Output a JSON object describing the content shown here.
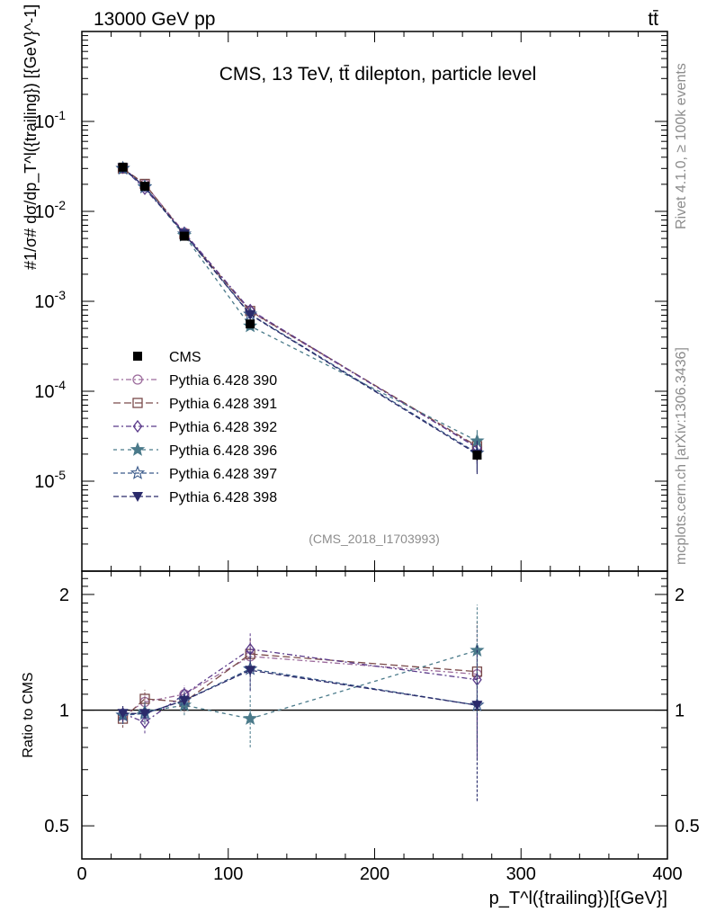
{
  "header": {
    "left": "13000 GeV pp",
    "right": "tt̄"
  },
  "side_labels": {
    "rivet": "Rivet 4.1.0, ≥ 100k events",
    "mcplots": "mcplots.cern.ch [arXiv:1306.3436]"
  },
  "chart_data": [
    {
      "type": "line",
      "title": "CMS, 13 TeV, tt̄ dilepton, particle level",
      "watermark": "(CMS_2018_I1703993)",
      "ylabel": "#1/σ# dσ/dp_T^l({trailing}) [{GeV}^-1]",
      "yscale": "log",
      "xlim": [
        0,
        400
      ],
      "ylim": [
        1e-06,
        1
      ],
      "ytick_labels": [
        "10^-1",
        "10^-2",
        "10^-3",
        "10^-4",
        "10^-5"
      ],
      "x": [
        28,
        43,
        70,
        115,
        270
      ],
      "legend_position": "middle-left",
      "series": [
        {
          "name": "CMS",
          "color": "#000000",
          "marker": "square-filled",
          "values": [
            0.031,
            0.019,
            0.0053,
            0.00056,
            1.95e-05
          ],
          "errors": [
            0.0015,
            0.001,
            0.0003,
            4e-05,
            2.5e-06
          ]
        },
        {
          "name": "Pythia 6.428 390",
          "color": "#9c6b9c",
          "marker": "circle-open",
          "values": [
            0.03,
            0.02,
            0.0058,
            0.00077,
            2.4e-05
          ],
          "errors": [
            0.001,
            0.001,
            0.0003,
            5e-05,
            8e-06
          ]
        },
        {
          "name": "Pythia 6.428 391",
          "color": "#7a4a4a",
          "marker": "square-open",
          "values": [
            0.03,
            0.0202,
            0.0056,
            0.00078,
            2.45e-05
          ],
          "errors": [
            0.001,
            0.001,
            0.0003,
            5e-05,
            8e-06
          ]
        },
        {
          "name": "Pythia 6.428 392",
          "color": "#5a3a8a",
          "marker": "diamond-open",
          "values": [
            0.0305,
            0.0178,
            0.0058,
            0.0008,
            2.35e-05
          ],
          "errors": [
            0.001,
            0.001,
            0.0003,
            5e-05,
            8e-06
          ]
        },
        {
          "name": "Pythia 6.428 396",
          "color": "#4a7a8a",
          "marker": "star-filled",
          "values": [
            0.03,
            0.0188,
            0.0054,
            0.00053,
            2.8e-05
          ],
          "errors": [
            0.001,
            0.001,
            0.0003,
            5e-05,
            9e-06
          ]
        },
        {
          "name": "Pythia 6.428 397",
          "color": "#3a5a8a",
          "marker": "star-open",
          "values": [
            0.03,
            0.0186,
            0.0056,
            0.00072,
            2.05e-05
          ],
          "errors": [
            0.001,
            0.001,
            0.0003,
            5e-05,
            8e-06
          ]
        },
        {
          "name": "Pythia 6.428 398",
          "color": "#2a2a6a",
          "marker": "triangle-down-filled",
          "values": [
            0.0305,
            0.0187,
            0.0056,
            0.00071,
            2e-05
          ],
          "errors": [
            0.001,
            0.001,
            0.0003,
            5e-05,
            8e-06
          ]
        }
      ]
    },
    {
      "type": "line",
      "xlabel": "p_T^l({trailing})[{GeV}]",
      "ylabel": "Ratio to CMS",
      "yscale": "log",
      "xlim": [
        0,
        400
      ],
      "ylim": [
        0.41,
        2.3
      ],
      "yticks": [
        0.5,
        1,
        2
      ],
      "ytick_labels": [
        "0.5",
        "1",
        "2"
      ],
      "xticks": [
        0,
        100,
        200,
        300,
        400
      ],
      "xtick_labels": [
        "0",
        "100",
        "200",
        "300",
        "400"
      ],
      "x": [
        28,
        43,
        70,
        115,
        270
      ],
      "reference_line": 1,
      "series": [
        {
          "name": "Pythia 6.428 390",
          "values": [
            0.97,
            1.05,
            1.1,
            1.38,
            1.24
          ],
          "errors": [
            0.05,
            0.06,
            0.06,
            0.15,
            0.45
          ]
        },
        {
          "name": "Pythia 6.428 391",
          "values": [
            0.95,
            1.07,
            1.05,
            1.4,
            1.26
          ],
          "errors": [
            0.05,
            0.06,
            0.06,
            0.15,
            0.45
          ]
        },
        {
          "name": "Pythia 6.428 392",
          "values": [
            0.98,
            0.93,
            1.1,
            1.44,
            1.2
          ],
          "errors": [
            0.05,
            0.06,
            0.06,
            0.15,
            0.45
          ]
        },
        {
          "name": "Pythia 6.428 396",
          "values": [
            0.97,
            0.99,
            1.03,
            0.95,
            1.43
          ],
          "errors": [
            0.05,
            0.06,
            0.06,
            0.15,
            0.45
          ]
        },
        {
          "name": "Pythia 6.428 397",
          "values": [
            0.97,
            0.98,
            1.06,
            1.28,
            1.03
          ],
          "errors": [
            0.05,
            0.06,
            0.06,
            0.15,
            0.45
          ]
        },
        {
          "name": "Pythia 6.428 398",
          "values": [
            0.98,
            0.98,
            1.06,
            1.27,
            1.03
          ],
          "errors": [
            0.05,
            0.06,
            0.06,
            0.15,
            0.45
          ]
        }
      ]
    }
  ]
}
